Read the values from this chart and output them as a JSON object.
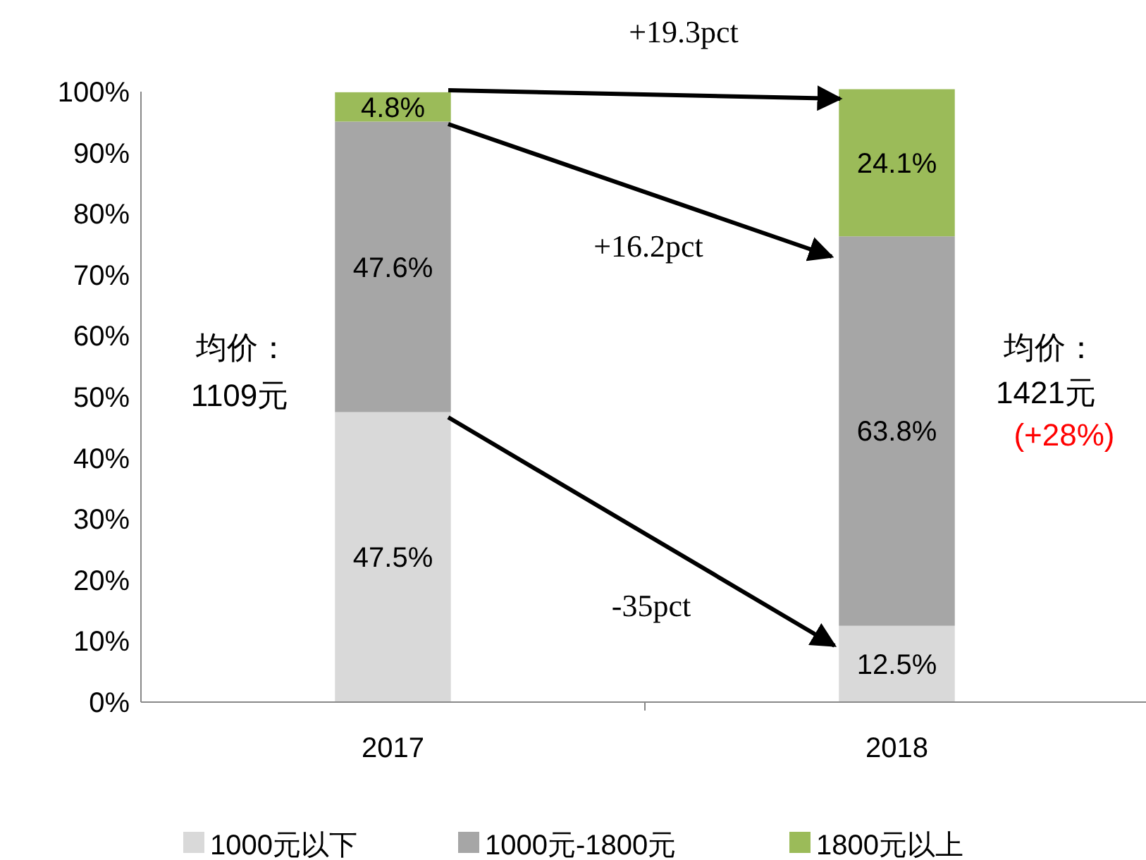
{
  "chart_data": {
    "type": "bar",
    "stacked": true,
    "categories": [
      "2017",
      "2018"
    ],
    "series": [
      {
        "name": "1000元以下",
        "color": "#d9d9d9",
        "values": [
          47.5,
          12.5
        ],
        "value_labels": [
          "47.5%",
          "12.5%"
        ]
      },
      {
        "name": "1000元-1800元",
        "color": "#a6a6a6",
        "values": [
          47.6,
          63.8
        ],
        "value_labels": [
          "47.6%",
          "63.8%"
        ]
      },
      {
        "name": "1800元以上",
        "color": "#9bbb59",
        "values": [
          4.8,
          24.1
        ],
        "value_labels": [
          "4.8%",
          "24.1%"
        ]
      }
    ],
    "ylim": [
      0,
      100
    ],
    "yticks": [
      {
        "value": 0,
        "label": "0%"
      },
      {
        "value": 10,
        "label": "10%"
      },
      {
        "value": 20,
        "label": "20%"
      },
      {
        "value": 30,
        "label": "30%"
      },
      {
        "value": 40,
        "label": "40%"
      },
      {
        "value": 50,
        "label": "50%"
      },
      {
        "value": 60,
        "label": "60%"
      },
      {
        "value": 70,
        "label": "70%"
      },
      {
        "value": 80,
        "label": "80%"
      },
      {
        "value": 90,
        "label": "90%"
      },
      {
        "value": 100,
        "label": "100%"
      }
    ],
    "legend": "bottom",
    "grid": false,
    "annotations": [
      "+19.3pct",
      "+16.2pct",
      "-35pct",
      "均价：",
      "1109元",
      "均价：",
      "1421元",
      "(+28%)"
    ]
  }
}
